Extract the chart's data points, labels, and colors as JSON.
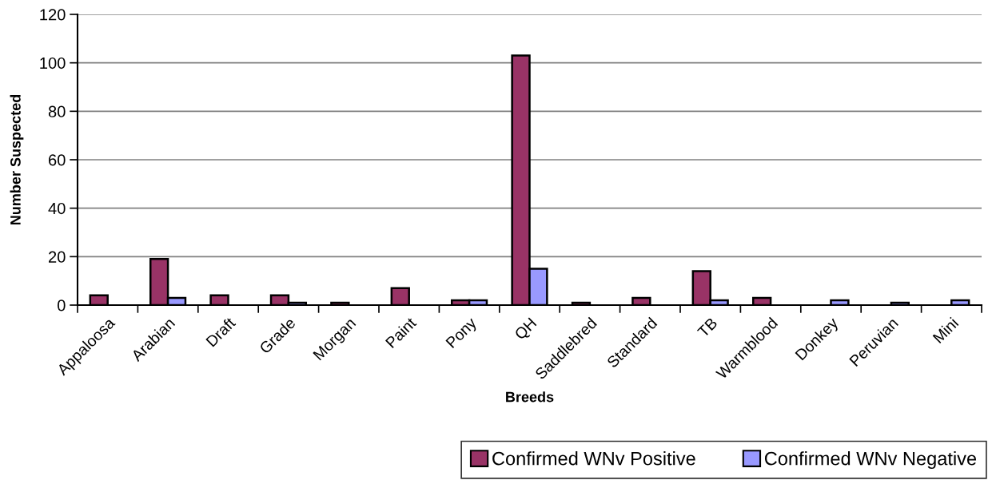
{
  "chart_data": {
    "type": "bar",
    "xlabel": "Breeds",
    "ylabel": "Number Suspected",
    "categories": [
      "Appaloosa",
      "Arabian",
      "Draft",
      "Grade",
      "Morgan",
      "Paint",
      "Pony",
      "QH",
      "Saddlebred",
      "Standard",
      "TB",
      "Warmblood",
      "Donkey",
      "Peruvian",
      "Mini"
    ],
    "series": [
      {
        "name": "Confirmed WNv Positive",
        "color": "#993366",
        "values": [
          4,
          19,
          4,
          4,
          1,
          7,
          2,
          103,
          1,
          3,
          14,
          3,
          null,
          null,
          null
        ]
      },
      {
        "name": "Confirmed WNv Negative",
        "color": "#9999ff",
        "values": [
          null,
          3,
          null,
          1,
          null,
          null,
          2,
          15,
          null,
          null,
          2,
          null,
          2,
          1,
          2
        ]
      }
    ],
    "ylim": [
      0,
      120
    ],
    "yticks": [
      0,
      20,
      40,
      60,
      80,
      100,
      120
    ],
    "grid": "y",
    "legend": "bottom right"
  }
}
